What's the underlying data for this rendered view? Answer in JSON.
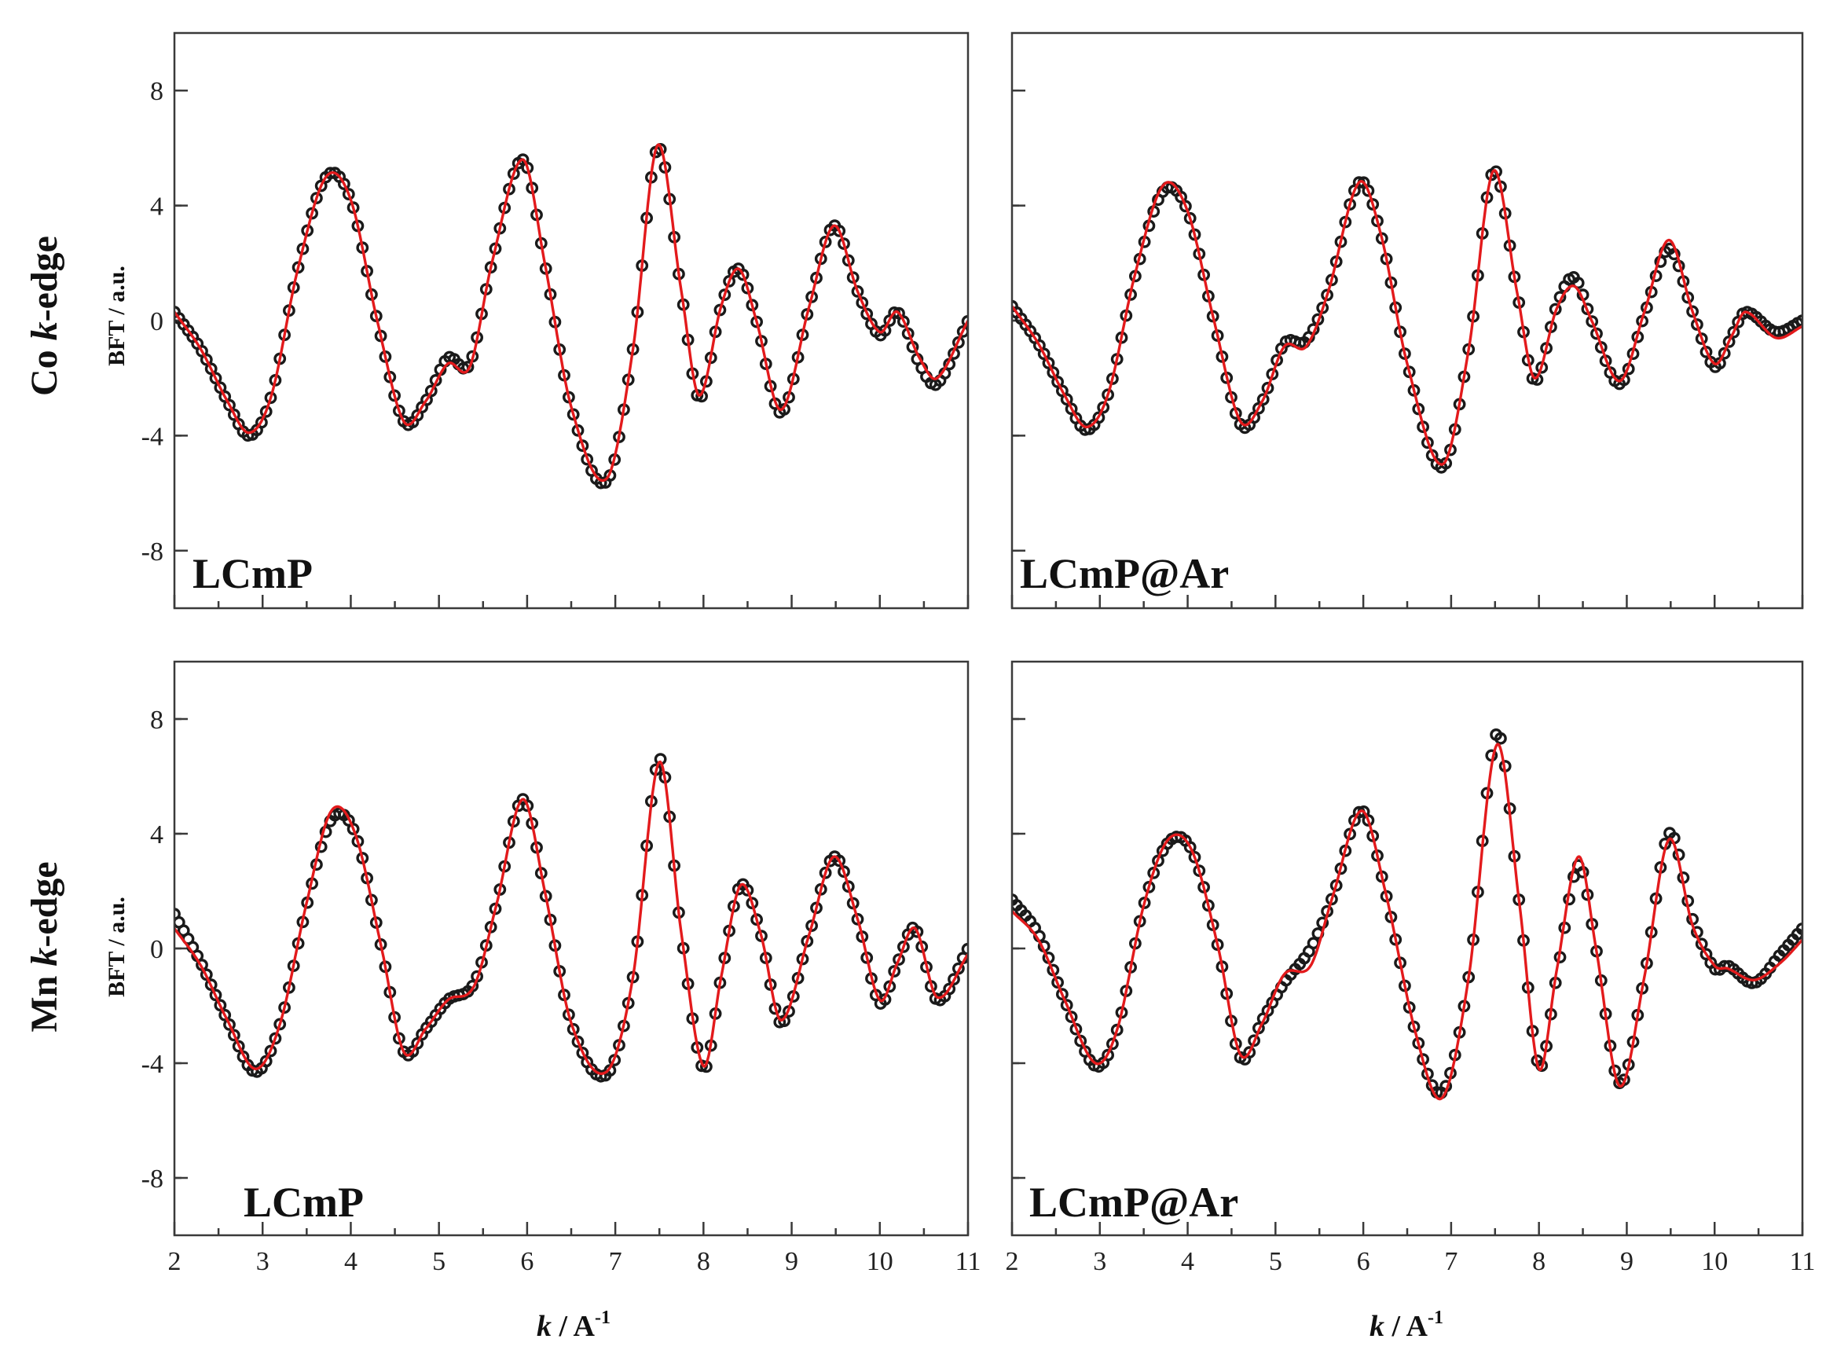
{
  "figure": {
    "row_labels": [
      {
        "prefix": "Co ",
        "italic": "k",
        "suffix": "-edge"
      },
      {
        "prefix": "Mn ",
        "italic": "k",
        "suffix": "-edge"
      }
    ],
    "xlabel": {
      "italic": "k",
      "rest": " / A",
      "sup": "-1"
    },
    "ylabel": "BFT / a.u."
  },
  "chart_data": [
    {
      "type": "line",
      "panel": "Co-LCmP",
      "label": "LCmP",
      "xlim": [
        2,
        11
      ],
      "ylim": [
        -10,
        10
      ],
      "xticks": [
        2,
        3,
        4,
        5,
        6,
        7,
        8,
        9,
        10,
        11
      ],
      "yticks": [
        -8,
        -4,
        0,
        4,
        8
      ],
      "series": [
        {
          "style": "open-circles",
          "color": "#1a1a1a",
          "x": [
            2.0,
            2.3,
            2.6,
            2.85,
            3.1,
            3.4,
            3.72,
            4.0,
            4.3,
            4.6,
            4.85,
            5.1,
            5.35,
            5.6,
            5.95,
            6.2,
            6.5,
            6.9,
            7.2,
            7.48,
            7.75,
            7.95,
            8.2,
            8.4,
            8.6,
            8.88,
            9.2,
            9.48,
            9.75,
            10.0,
            10.2,
            10.45,
            10.65,
            11.0
          ],
          "y": [
            0.3,
            -1.0,
            -2.8,
            -4.0,
            -2.6,
            1.8,
            5.0,
            4.2,
            0.0,
            -3.5,
            -2.8,
            -1.3,
            -1.5,
            2.0,
            5.6,
            2.0,
            -3.0,
            -5.6,
            -1.0,
            6.0,
            1.0,
            -2.7,
            0.5,
            1.8,
            0.0,
            -3.2,
            0.5,
            3.3,
            1.0,
            -0.5,
            0.3,
            -1.5,
            -2.2,
            0.0
          ]
        },
        {
          "style": "line",
          "color": "#e31a1c",
          "x": [
            2.0,
            2.3,
            2.6,
            2.85,
            3.1,
            3.4,
            3.72,
            4.0,
            4.3,
            4.6,
            4.85,
            5.1,
            5.35,
            5.6,
            5.95,
            6.2,
            6.5,
            6.9,
            7.2,
            7.48,
            7.75,
            7.95,
            8.2,
            8.4,
            8.6,
            8.88,
            9.2,
            9.48,
            9.75,
            10.0,
            10.2,
            10.45,
            10.65,
            11.0
          ],
          "y": [
            0.3,
            -1.0,
            -2.8,
            -3.9,
            -2.6,
            1.8,
            5.0,
            4.2,
            0.0,
            -3.5,
            -2.8,
            -1.5,
            -1.6,
            2.0,
            5.6,
            2.0,
            -3.0,
            -5.5,
            -1.0,
            6.1,
            1.0,
            -2.6,
            0.5,
            1.8,
            0.0,
            -3.1,
            0.5,
            3.3,
            1.0,
            -0.4,
            0.3,
            -1.3,
            -2.0,
            0.0
          ]
        }
      ]
    },
    {
      "type": "line",
      "panel": "Co-LCmP@Ar",
      "label": "LCmP@Ar",
      "xlim": [
        2,
        11
      ],
      "ylim": [
        -10,
        10
      ],
      "xticks": [
        2,
        3,
        4,
        5,
        6,
        7,
        8,
        9,
        10,
        11
      ],
      "yticks": [
        -8,
        -4,
        0,
        4,
        8
      ],
      "series": [
        {
          "style": "open-circles",
          "color": "#1a1a1a",
          "x": [
            2.0,
            2.3,
            2.6,
            2.85,
            3.1,
            3.4,
            3.72,
            4.0,
            4.3,
            4.6,
            4.85,
            5.1,
            5.35,
            5.6,
            5.95,
            6.2,
            6.5,
            6.9,
            7.2,
            7.48,
            7.75,
            7.95,
            8.2,
            8.4,
            8.6,
            8.92,
            9.2,
            9.48,
            9.75,
            10.0,
            10.2,
            10.35,
            10.7,
            11.0
          ],
          "y": [
            0.5,
            -0.8,
            -2.6,
            -3.8,
            -2.5,
            1.5,
            4.5,
            3.8,
            0.0,
            -3.6,
            -2.8,
            -0.8,
            -0.7,
            1.0,
            4.8,
            3.0,
            -1.5,
            -5.1,
            -1.0,
            5.2,
            1.0,
            -2.1,
            0.5,
            1.5,
            0.0,
            -2.2,
            0.2,
            2.5,
            0.3,
            -1.6,
            -0.5,
            0.3,
            -0.4,
            0.0
          ]
        },
        {
          "style": "line",
          "color": "#e31a1c",
          "x": [
            2.0,
            2.3,
            2.6,
            2.85,
            3.1,
            3.4,
            3.72,
            4.0,
            4.3,
            4.6,
            4.85,
            5.1,
            5.35,
            5.6,
            5.95,
            6.2,
            6.5,
            6.9,
            7.2,
            7.48,
            7.75,
            7.95,
            8.2,
            8.4,
            8.6,
            8.92,
            9.2,
            9.48,
            9.75,
            10.0,
            10.2,
            10.35,
            10.7,
            11.0
          ],
          "y": [
            0.5,
            -0.8,
            -2.6,
            -3.7,
            -2.5,
            1.6,
            4.7,
            3.8,
            0.0,
            -3.5,
            -2.8,
            -0.9,
            -0.9,
            1.0,
            4.8,
            3.0,
            -1.5,
            -5.0,
            -1.0,
            5.2,
            1.0,
            -2.0,
            0.4,
            1.2,
            0.0,
            -2.1,
            0.3,
            2.8,
            0.3,
            -1.5,
            -0.5,
            0.3,
            -0.6,
            -0.2
          ]
        }
      ]
    },
    {
      "type": "line",
      "panel": "Mn-LCmP",
      "label": "LCmP",
      "xlim": [
        2,
        11
      ],
      "ylim": [
        -10,
        10
      ],
      "xticks": [
        2,
        3,
        4,
        5,
        6,
        7,
        8,
        9,
        10,
        11
      ],
      "xticklabels": [
        "2",
        "3",
        "4",
        "5",
        "6",
        "7",
        "8",
        "9",
        "10",
        "11"
      ],
      "yticks": [
        -8,
        -4,
        0,
        4,
        8
      ],
      "series": [
        {
          "style": "open-circles",
          "color": "#1a1a1a",
          "x": [
            2.0,
            2.3,
            2.6,
            2.92,
            3.2,
            3.5,
            3.78,
            4.05,
            4.35,
            4.6,
            4.85,
            5.1,
            5.4,
            5.65,
            5.95,
            6.2,
            6.5,
            6.9,
            7.2,
            7.5,
            7.75,
            8.0,
            8.2,
            8.42,
            8.65,
            8.88,
            9.2,
            9.48,
            9.75,
            10.0,
            10.2,
            10.4,
            10.65,
            11.0
          ],
          "y": [
            1.2,
            -0.5,
            -2.5,
            -4.3,
            -2.6,
            1.5,
            4.5,
            4.0,
            0.0,
            -3.6,
            -2.8,
            -1.8,
            -1.2,
            1.5,
            5.2,
            2.0,
            -2.6,
            -4.4,
            -1.0,
            6.6,
            0.5,
            -4.2,
            -1.0,
            2.2,
            0.5,
            -2.6,
            0.5,
            3.2,
            1.0,
            -1.9,
            -0.5,
            0.7,
            -1.8,
            0.0
          ]
        },
        {
          "style": "line",
          "color": "#e31a1c",
          "x": [
            2.0,
            2.3,
            2.6,
            2.92,
            3.2,
            3.5,
            3.78,
            4.05,
            4.35,
            4.6,
            4.85,
            5.1,
            5.4,
            5.65,
            5.95,
            6.2,
            6.5,
            6.9,
            7.2,
            7.5,
            7.75,
            8.0,
            8.2,
            8.42,
            8.65,
            8.88,
            9.2,
            9.48,
            9.75,
            10.0,
            10.2,
            10.4,
            10.65,
            11.0
          ],
          "y": [
            0.7,
            -0.6,
            -2.5,
            -4.2,
            -2.6,
            1.6,
            4.8,
            4.0,
            0.0,
            -3.6,
            -2.8,
            -1.8,
            -1.3,
            1.5,
            5.2,
            2.0,
            -2.6,
            -4.3,
            -1.0,
            6.5,
            0.5,
            -4.1,
            -1.0,
            2.2,
            0.5,
            -2.5,
            0.5,
            3.2,
            1.0,
            -1.8,
            -0.5,
            0.7,
            -1.7,
            -0.2
          ]
        }
      ]
    },
    {
      "type": "line",
      "panel": "Mn-LCmP@Ar",
      "label": "LCmP@Ar",
      "xlim": [
        2,
        11
      ],
      "ylim": [
        -10,
        10
      ],
      "xticks": [
        2,
        3,
        4,
        5,
        6,
        7,
        8,
        9,
        10,
        11
      ],
      "xticklabels": [
        "2",
        "3",
        "4",
        "5",
        "6",
        "7",
        "8",
        "9",
        "10",
        "11"
      ],
      "yticks": [
        -8,
        -4,
        0,
        4,
        8
      ],
      "series": [
        {
          "style": "open-circles",
          "color": "#1a1a1a",
          "x": [
            2.0,
            2.3,
            2.6,
            2.95,
            3.2,
            3.5,
            3.78,
            4.05,
            4.35,
            4.6,
            4.85,
            5.1,
            5.4,
            5.65,
            5.98,
            6.25,
            6.6,
            6.9,
            7.2,
            7.52,
            7.78,
            8.0,
            8.2,
            8.45,
            8.65,
            8.92,
            9.2,
            9.48,
            9.75,
            10.0,
            10.15,
            10.45,
            10.75,
            11.0
          ],
          "y": [
            1.7,
            0.5,
            -1.8,
            -4.1,
            -2.8,
            1.5,
            3.7,
            3.4,
            0.0,
            -3.8,
            -2.5,
            -1.2,
            0.0,
            1.8,
            4.8,
            2.0,
            -3.0,
            -5.0,
            -1.0,
            7.5,
            1.5,
            -4.1,
            -1.0,
            2.9,
            0.0,
            -4.7,
            -1.0,
            4.0,
            1.0,
            -0.7,
            -0.6,
            -1.2,
            -0.2,
            0.7
          ]
        },
        {
          "style": "line",
          "color": "#e31a1c",
          "x": [
            2.0,
            2.3,
            2.6,
            2.95,
            3.2,
            3.5,
            3.78,
            4.05,
            4.35,
            4.6,
            4.85,
            5.1,
            5.4,
            5.65,
            5.98,
            6.25,
            6.6,
            6.9,
            7.2,
            7.52,
            7.78,
            8.0,
            8.2,
            8.45,
            8.65,
            8.92,
            9.2,
            9.48,
            9.75,
            10.0,
            10.15,
            10.45,
            10.75,
            11.0
          ],
          "y": [
            1.3,
            0.3,
            -1.8,
            -4.0,
            -2.8,
            1.5,
            3.8,
            3.4,
            0.0,
            -3.7,
            -2.6,
            -0.9,
            -0.6,
            1.8,
            4.8,
            2.0,
            -3.0,
            -5.2,
            -1.0,
            7.1,
            1.5,
            -4.2,
            -0.8,
            3.2,
            0.0,
            -4.8,
            -1.0,
            3.8,
            0.8,
            -0.6,
            -0.7,
            -1.1,
            -0.5,
            0.3
          ]
        }
      ]
    }
  ]
}
